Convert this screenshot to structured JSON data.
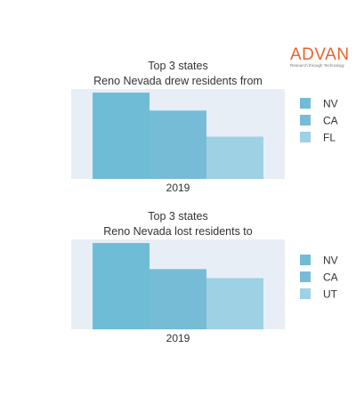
{
  "brand": {
    "name": "ADVAN",
    "tagline": "Research through Technology",
    "color": "#e8632f"
  },
  "colors": {
    "plot_background": "#e8eef6",
    "bars": [
      "#6fbcd6",
      "#76bcd6",
      "#9dd1e3"
    ]
  },
  "chart_data": [
    {
      "type": "bar",
      "title": "Top 3 states\nReno Nevada drew residents from",
      "categories": [
        "2019"
      ],
      "series": [
        {
          "name": "NV",
          "values": [
            0.96
          ]
        },
        {
          "name": "CA",
          "values": [
            0.76
          ]
        },
        {
          "name": "FL",
          "values": [
            0.47
          ]
        }
      ],
      "xlabel": "",
      "ylabel": "",
      "ylim": [
        0,
        1
      ],
      "show_yaxis": false,
      "grid": false,
      "legend": "right"
    },
    {
      "type": "bar",
      "title": "Top 3 states\nReno Nevada lost residents to",
      "categories": [
        "2019"
      ],
      "series": [
        {
          "name": "NV",
          "values": [
            0.96
          ]
        },
        {
          "name": "CA",
          "values": [
            0.67
          ]
        },
        {
          "name": "UT",
          "values": [
            0.57
          ]
        }
      ],
      "xlabel": "",
      "ylabel": "",
      "ylim": [
        0,
        1
      ],
      "show_yaxis": false,
      "grid": false,
      "legend": "right"
    }
  ]
}
